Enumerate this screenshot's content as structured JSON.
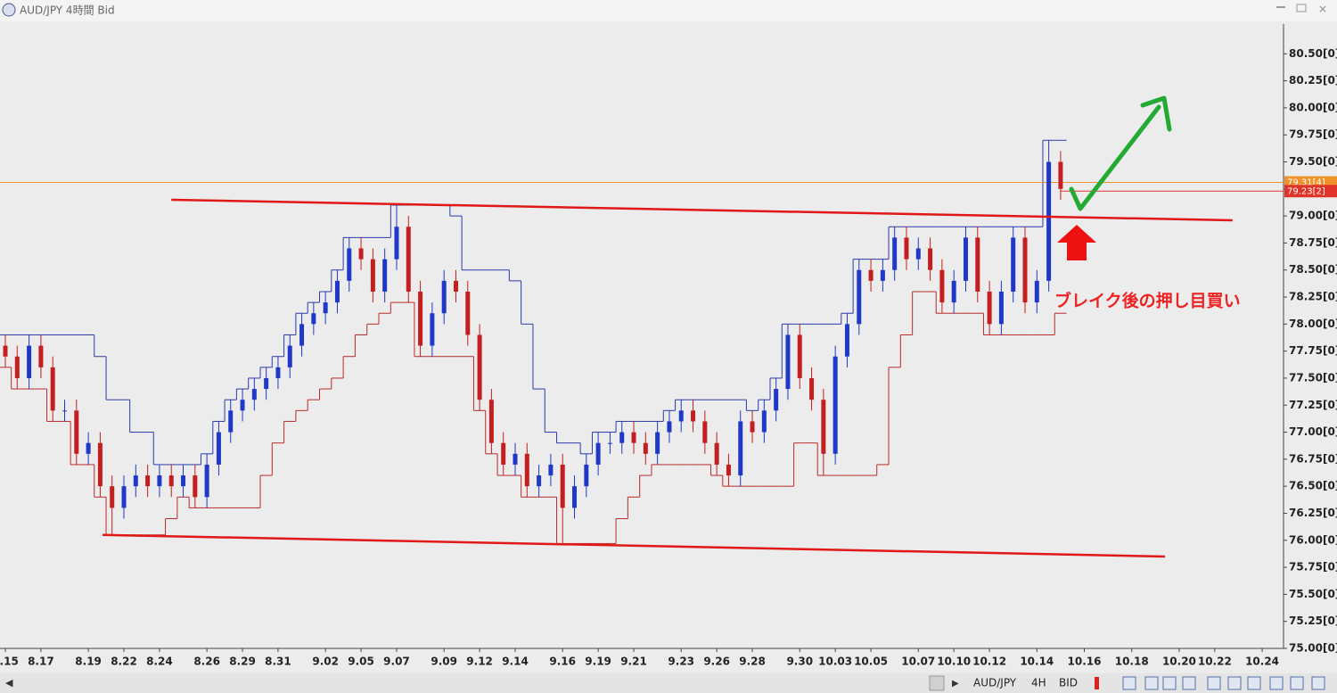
{
  "window": {
    "title": "AUD/JPY 4時間 Bid"
  },
  "toolbar": {
    "symbol": "AUD/JPY",
    "timeframe": "4H",
    "price": "BID"
  },
  "chart_data": {
    "type": "candlestick",
    "annotation": "ブレイク後の押し目買い",
    "categories": [
      "8.15",
      null,
      null,
      "8.17",
      null,
      null,
      null,
      "8.19",
      null,
      null,
      "8.22",
      null,
      null,
      "8.24",
      null,
      null,
      null,
      "8.26",
      null,
      null,
      "8.29",
      null,
      null,
      "8.31",
      null,
      null,
      null,
      "9.02",
      null,
      null,
      "9.05",
      null,
      null,
      "9.07",
      null,
      null,
      null,
      "9.09",
      null,
      null,
      "9.12",
      null,
      null,
      "9.14",
      null,
      null,
      null,
      "9.16",
      null,
      null,
      "9.19",
      null,
      null,
      "9.21",
      null,
      null,
      null,
      "9.23",
      null,
      null,
      "9.26",
      null,
      null,
      "9.28",
      null,
      null,
      null,
      "9.30",
      null,
      null,
      "10.03",
      null,
      null,
      "10.05",
      null,
      null,
      null,
      "10.07",
      null,
      null,
      "10.10",
      null,
      null,
      "10.12",
      null,
      null,
      null,
      "10.14",
      null,
      null,
      null,
      "10.16",
      null,
      null,
      null,
      "10.18",
      null,
      null,
      null,
      "10.20",
      null,
      null,
      "10.22",
      null,
      null,
      null,
      "10.24",
      null
    ],
    "open": [
      77.8,
      77.7,
      77.5,
      77.8,
      77.6,
      77.2,
      77.2,
      76.8,
      76.9,
      76.5,
      76.3,
      76.5,
      76.6,
      76.5,
      76.6,
      76.5,
      76.6,
      76.4,
      76.7,
      77.0,
      77.2,
      77.3,
      77.4,
      77.5,
      77.6,
      77.8,
      78.0,
      78.1,
      78.2,
      78.4,
      78.7,
      78.6,
      78.3,
      78.6,
      78.9,
      78.3,
      77.8,
      78.1,
      78.4,
      78.3,
      77.9,
      77.3,
      76.9,
      76.7,
      76.8,
      76.5,
      76.6,
      76.7,
      76.3,
      76.5,
      76.7,
      76.9,
      76.9,
      77.0,
      76.9,
      76.8,
      77.0,
      77.1,
      77.2,
      77.1,
      76.9,
      76.7,
      76.6,
      77.1,
      77.0,
      77.2,
      77.4,
      77.9,
      77.5,
      77.3,
      76.8,
      77.7,
      78.0,
      78.5,
      78.4,
      78.5,
      78.8,
      78.6,
      78.7,
      78.5,
      78.2,
      78.4,
      78.8,
      78.3,
      78.0,
      78.3,
      78.8,
      78.2,
      78.4,
      79.5,
      null,
      null,
      null,
      null,
      null,
      null,
      null,
      null,
      null,
      null,
      null,
      null,
      null,
      null,
      null,
      null,
      null,
      null
    ],
    "high": [
      77.9,
      77.8,
      77.9,
      77.9,
      77.7,
      77.3,
      77.3,
      77.0,
      77.0,
      76.6,
      76.6,
      76.7,
      76.7,
      76.7,
      76.7,
      76.7,
      76.7,
      76.8,
      77.1,
      77.3,
      77.4,
      77.5,
      77.6,
      77.7,
      77.9,
      78.1,
      78.2,
      78.3,
      78.5,
      78.8,
      78.8,
      78.7,
      78.7,
      79.1,
      79.0,
      78.4,
      78.2,
      78.5,
      78.5,
      78.4,
      78.0,
      77.4,
      77.0,
      76.9,
      76.9,
      76.7,
      76.8,
      76.8,
      76.6,
      76.8,
      77.0,
      77.0,
      77.1,
      77.1,
      77.0,
      77.1,
      77.2,
      77.3,
      77.3,
      77.2,
      77.0,
      76.8,
      77.2,
      77.2,
      77.3,
      77.5,
      78.0,
      78.0,
      77.6,
      77.4,
      77.8,
      78.1,
      78.6,
      78.6,
      78.6,
      78.9,
      78.9,
      78.8,
      78.8,
      78.6,
      78.5,
      78.9,
      78.9,
      78.4,
      78.4,
      78.9,
      78.9,
      78.5,
      79.7,
      79.6,
      null,
      null,
      null,
      null,
      null,
      null,
      null,
      null,
      null,
      null,
      null,
      null,
      null,
      null,
      null,
      null,
      null,
      null
    ],
    "low": [
      77.6,
      77.4,
      77.4,
      77.5,
      77.1,
      77.1,
      76.7,
      76.7,
      76.4,
      76.05,
      76.2,
      76.4,
      76.4,
      76.4,
      76.4,
      76.4,
      76.3,
      76.3,
      76.6,
      76.9,
      77.1,
      77.2,
      77.3,
      77.4,
      77.5,
      77.7,
      77.9,
      78.0,
      78.1,
      78.3,
      78.5,
      78.2,
      78.2,
      78.5,
      78.2,
      77.7,
      77.7,
      78.0,
      78.2,
      77.8,
      77.2,
      76.8,
      76.6,
      76.6,
      76.4,
      76.4,
      76.5,
      75.97,
      76.2,
      76.4,
      76.6,
      76.8,
      76.8,
      76.8,
      76.7,
      76.7,
      76.9,
      77.0,
      77.0,
      76.8,
      76.6,
      76.5,
      76.5,
      76.9,
      76.9,
      77.1,
      77.3,
      77.4,
      77.2,
      76.6,
      76.7,
      77.6,
      77.9,
      78.3,
      78.3,
      78.4,
      78.5,
      78.5,
      78.4,
      78.1,
      78.1,
      78.3,
      78.2,
      77.9,
      77.9,
      78.2,
      78.1,
      78.1,
      78.3,
      79.15,
      null,
      null,
      null,
      null,
      null,
      null,
      null,
      null,
      null,
      null,
      null,
      null,
      null,
      null,
      null,
      null,
      null,
      null
    ],
    "close": [
      77.7,
      77.5,
      77.8,
      77.6,
      77.2,
      77.2,
      76.8,
      76.9,
      76.5,
      76.3,
      76.5,
      76.6,
      76.5,
      76.6,
      76.5,
      76.6,
      76.4,
      76.7,
      77.0,
      77.2,
      77.3,
      77.4,
      77.5,
      77.6,
      77.8,
      78.0,
      78.1,
      78.2,
      78.4,
      78.7,
      78.6,
      78.3,
      78.6,
      78.9,
      78.3,
      77.8,
      78.1,
      78.4,
      78.3,
      77.9,
      77.3,
      76.9,
      76.7,
      76.8,
      76.5,
      76.6,
      76.7,
      76.3,
      76.5,
      76.7,
      76.9,
      76.9,
      77.0,
      76.9,
      76.8,
      77.0,
      77.1,
      77.2,
      77.1,
      76.9,
      76.7,
      76.6,
      77.1,
      77.0,
      77.2,
      77.4,
      77.9,
      77.5,
      77.3,
      76.8,
      77.7,
      78.0,
      78.5,
      78.4,
      78.5,
      78.8,
      78.6,
      78.7,
      78.5,
      78.2,
      78.4,
      78.8,
      78.3,
      78.0,
      78.3,
      78.8,
      78.2,
      78.4,
      79.5,
      79.25,
      null,
      null,
      null,
      null,
      null,
      null,
      null,
      null,
      null,
      null,
      null,
      null,
      null,
      null,
      null,
      null,
      null,
      null
    ],
    "up_color": "#2038c8",
    "down_color": "#c41e1e",
    "channel": {
      "upper_color": "#2a3aa8",
      "lower_color": "#b82a2a",
      "upper": [
        77.9,
        77.9,
        77.9,
        77.9,
        77.9,
        77.9,
        77.9,
        77.9,
        77.7,
        77.3,
        77.3,
        77.0,
        77.0,
        76.7,
        76.7,
        76.7,
        76.7,
        76.8,
        77.1,
        77.3,
        77.4,
        77.5,
        77.6,
        77.7,
        77.9,
        78.1,
        78.2,
        78.3,
        78.5,
        78.8,
        78.8,
        78.8,
        78.8,
        79.1,
        79.1,
        79.1,
        79.1,
        79.1,
        79.0,
        78.5,
        78.5,
        78.5,
        78.5,
        78.4,
        78.0,
        77.4,
        77.0,
        76.9,
        76.9,
        76.8,
        77.0,
        77.0,
        77.1,
        77.1,
        77.1,
        77.1,
        77.2,
        77.3,
        77.3,
        77.3,
        77.3,
        77.3,
        77.3,
        77.2,
        77.3,
        77.5,
        78.0,
        78.0,
        78.0,
        78.0,
        78.0,
        78.1,
        78.6,
        78.6,
        78.6,
        78.9,
        78.9,
        78.9,
        78.9,
        78.9,
        78.9,
        78.9,
        78.9,
        78.9,
        78.9,
        78.9,
        78.9,
        78.9,
        79.7,
        79.7,
        null,
        null,
        null,
        null,
        null,
        null,
        null,
        null,
        null,
        null,
        null,
        null,
        null,
        null,
        null,
        null,
        null,
        null
      ],
      "lower": [
        77.6,
        77.4,
        77.4,
        77.4,
        77.1,
        77.1,
        76.7,
        76.7,
        76.4,
        76.05,
        76.05,
        76.05,
        76.05,
        76.05,
        76.2,
        76.4,
        76.3,
        76.3,
        76.3,
        76.3,
        76.3,
        76.3,
        76.6,
        76.9,
        77.1,
        77.2,
        77.3,
        77.4,
        77.5,
        77.7,
        77.9,
        78.0,
        78.1,
        78.2,
        78.2,
        77.7,
        77.7,
        77.7,
        77.7,
        77.7,
        77.2,
        76.8,
        76.6,
        76.6,
        76.4,
        76.4,
        76.4,
        75.97,
        75.97,
        75.97,
        75.97,
        75.97,
        76.2,
        76.4,
        76.6,
        76.7,
        76.7,
        76.7,
        76.7,
        76.7,
        76.6,
        76.5,
        76.5,
        76.5,
        76.5,
        76.5,
        76.5,
        76.9,
        76.9,
        76.6,
        76.6,
        76.6,
        76.6,
        76.6,
        76.7,
        77.6,
        77.9,
        78.3,
        78.3,
        78.1,
        78.1,
        78.1,
        78.1,
        77.9,
        77.9,
        77.9,
        77.9,
        77.9,
        77.9,
        78.1,
        null,
        null,
        null,
        null,
        null,
        null,
        null,
        null,
        null,
        null,
        null,
        null,
        null,
        null,
        null,
        null,
        null,
        null
      ]
    },
    "trendlines": [
      {
        "color": "#e01818",
        "x": [
          14,
          103.5
        ],
        "y": [
          79.15,
          78.96
        ]
      },
      {
        "color": "#e01818",
        "x": [
          8.2,
          97.8
        ],
        "y": [
          76.05,
          75.85
        ]
      }
    ],
    "price_lines": [
      {
        "value": 79.31,
        "label": "79.31[4]",
        "color": "#f0922a"
      },
      {
        "value": 79.23,
        "label": "79.23[2]",
        "color": "#e0342a"
      }
    ],
    "xlim": [
      -0.45,
      107.8
    ],
    "ylim": [
      75.0,
      80.75
    ],
    "yticks": [
      {
        "value": 75.0,
        "label": "75.00[0]"
      },
      {
        "value": 75.25,
        "label": "75.25[0]"
      },
      {
        "value": 75.5,
        "label": "75.50[0]"
      },
      {
        "value": 75.75,
        "label": "75.75[0]"
      },
      {
        "value": 76.0,
        "label": "76.00[0]"
      },
      {
        "value": 76.25,
        "label": "76.25[0]"
      },
      {
        "value": 76.5,
        "label": "76.50[0]"
      },
      {
        "value": 76.75,
        "label": "76.75[0]"
      },
      {
        "value": 77.0,
        "label": "77.00[0]"
      },
      {
        "value": 77.25,
        "label": "77.25[0]"
      },
      {
        "value": 77.5,
        "label": "77.50[0]"
      },
      {
        "value": 77.75,
        "label": "77.75[0]"
      },
      {
        "value": 78.0,
        "label": "78.00[0]"
      },
      {
        "value": 78.25,
        "label": "78.25[0]"
      },
      {
        "value": 78.5,
        "label": "78.50[0]"
      },
      {
        "value": 78.75,
        "label": "78.75[0]"
      },
      {
        "value": 79.0,
        "label": "79.00[0]"
      },
      {
        "value": 79.25,
        "label": "79.25[0]"
      },
      {
        "value": 79.5,
        "label": "79.50[0]"
      },
      {
        "value": 79.75,
        "label": "79.75[0]"
      },
      {
        "value": 80.0,
        "label": "80.00[0]"
      },
      {
        "value": 80.25,
        "label": "80.25[0]"
      },
      {
        "value": 80.5,
        "label": "80.50[0]"
      }
    ]
  }
}
